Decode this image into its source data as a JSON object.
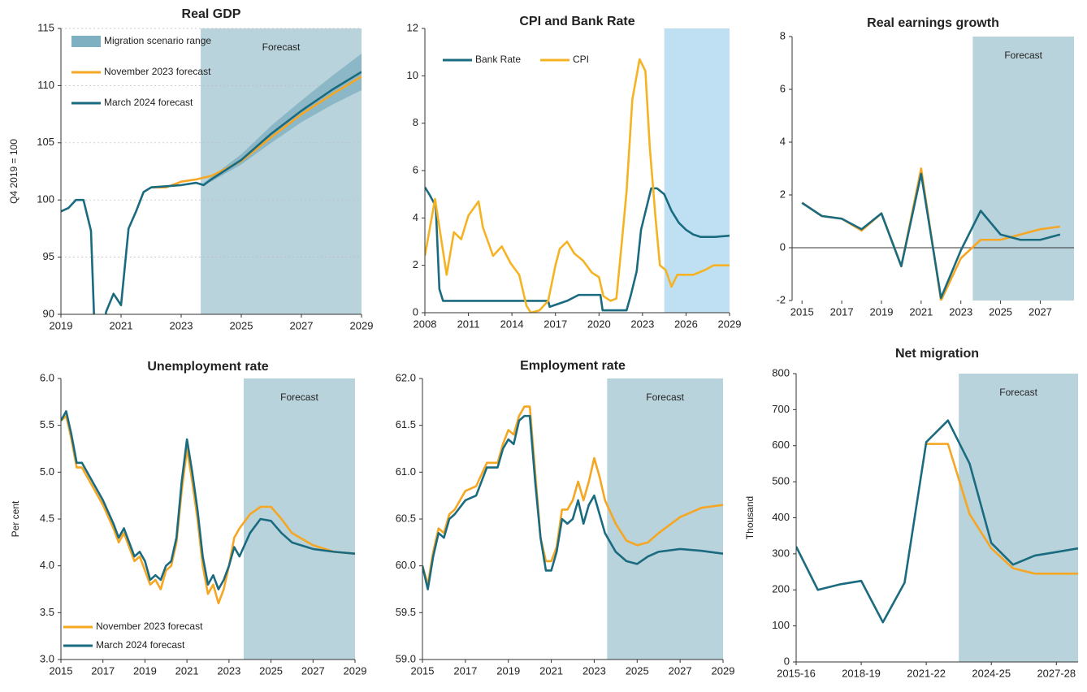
{
  "chart_data": [
    {
      "type": "line",
      "title": "Real GDP",
      "ylabel": "Q4 2019 = 100",
      "grid": true,
      "legend": "upper left",
      "forecast": {
        "label": "Forecast",
        "start": 2023.65,
        "color": "#b9d3dc"
      },
      "xlim": [
        2019,
        2029
      ],
      "xticks": [
        2019,
        2021,
        2023,
        2025,
        2027,
        2029
      ],
      "ylim": [
        90,
        115
      ],
      "yticks": [
        90,
        95,
        100,
        105,
        110,
        115
      ],
      "band": {
        "name": "Migration scenario range",
        "color": "#7fb0c2",
        "x": [
          2023.65,
          2024,
          2025,
          2026,
          2027,
          2028,
          2029
        ],
        "lower": [
          101.3,
          101.6,
          103.1,
          105.0,
          106.8,
          108.3,
          109.6
        ],
        "upper": [
          101.3,
          102.0,
          104.0,
          106.5,
          108.7,
          110.8,
          112.8
        ]
      },
      "series": [
        {
          "name": "November 2023 forecast",
          "color": "#f5a623",
          "x": [
            2022,
            2022.5,
            2023,
            2023.5,
            2024,
            2025,
            2026,
            2027,
            2028,
            2029
          ],
          "values": [
            101.1,
            101.1,
            101.6,
            101.8,
            102.1,
            103.4,
            105.5,
            107.5,
            109.2,
            110.8
          ]
        },
        {
          "name": "March 2024 forecast",
          "color": "#1b6b80",
          "x": [
            2019,
            2019.25,
            2019.5,
            2019.75,
            2020,
            2020.25,
            2020.5,
            2020.75,
            2021,
            2021.25,
            2021.5,
            2021.75,
            2022,
            2022.5,
            2023,
            2023.5,
            2023.75,
            2024,
            2025,
            2026,
            2027,
            2028,
            2029
          ],
          "values": [
            99,
            99.3,
            100,
            100,
            97.3,
            79,
            90.2,
            91.8,
            90.8,
            97.5,
            99,
            100.7,
            101.1,
            101.2,
            101.3,
            101.5,
            101.3,
            101.8,
            103.5,
            105.8,
            107.8,
            109.6,
            111.2
          ]
        }
      ]
    },
    {
      "type": "line",
      "title": "CPI and Bank Rate",
      "grid": false,
      "legend": "upper left",
      "forecast": {
        "start": 2024.5,
        "color": "#bfe0f2"
      },
      "xlim": [
        2008,
        2029
      ],
      "xticks": [
        2008,
        2011,
        2014,
        2017,
        2020,
        2023,
        2026,
        2029
      ],
      "ylim": [
        0,
        12
      ],
      "yticks": [
        0,
        2,
        4,
        6,
        8,
        10,
        12
      ],
      "series": [
        {
          "name": "Bank Rate",
          "color": "#1b6b80",
          "x": [
            2008,
            2008.3,
            2008.75,
            2009,
            2009.25,
            2016.5,
            2016.6,
            2017.8,
            2018.6,
            2020.1,
            2020.25,
            2021.9,
            2022.2,
            2022.6,
            2022.9,
            2023.3,
            2023.6,
            2024,
            2024.5,
            2025,
            2025.5,
            2026,
            2026.5,
            2027,
            2028,
            2029
          ],
          "values": [
            5.3,
            5.0,
            4.5,
            1.0,
            0.5,
            0.5,
            0.25,
            0.5,
            0.75,
            0.75,
            0.1,
            0.1,
            0.75,
            1.75,
            3.5,
            4.5,
            5.25,
            5.25,
            5.0,
            4.3,
            3.8,
            3.5,
            3.3,
            3.2,
            3.2,
            3.25
          ]
        },
        {
          "name": "CPI",
          "color": "#f5b324",
          "x": [
            2008,
            2008.7,
            2009.5,
            2010,
            2010.5,
            2011,
            2011.7,
            2012,
            2012.7,
            2013.3,
            2013.9,
            2014.5,
            2015,
            2015.3,
            2015.9,
            2016.5,
            2017,
            2017.3,
            2017.8,
            2018.3,
            2018.9,
            2019.5,
            2020,
            2020.3,
            2020.8,
            2021.2,
            2021.5,
            2021.9,
            2022.3,
            2022.8,
            2023.2,
            2023.5,
            2023.9,
            2024.2,
            2024.6,
            2025,
            2025.4,
            2026,
            2026.5,
            2027.3,
            2027.9,
            2029
          ],
          "values": [
            2.4,
            4.8,
            1.6,
            3.4,
            3.1,
            4.1,
            4.7,
            3.6,
            2.4,
            2.8,
            2.1,
            1.6,
            0.3,
            0.0,
            0.1,
            0.5,
            2.0,
            2.7,
            3.0,
            2.5,
            2.2,
            1.7,
            1.5,
            0.7,
            0.5,
            0.6,
            2.5,
            5.1,
            9.0,
            10.7,
            10.2,
            7.0,
            4.0,
            2.0,
            1.8,
            1.1,
            1.6,
            1.6,
            1.6,
            1.8,
            2.0,
            2.0
          ]
        }
      ]
    },
    {
      "type": "line",
      "title": "Real earnings growth",
      "grid": false,
      "zero_line": true,
      "forecast": {
        "label": "Forecast",
        "start": 2023.6,
        "color": "#b9d3dc"
      },
      "xlim": [
        2014.5,
        2028.7
      ],
      "xticks": [
        2015,
        2017,
        2019,
        2021,
        2023,
        2025,
        2027
      ],
      "ylim": [
        -2,
        8
      ],
      "yticks": [
        -2,
        0,
        2,
        4,
        6,
        8
      ],
      "series": [
        {
          "color": "#f5a623",
          "x": [
            2015,
            2016,
            2017,
            2018,
            2019,
            2020,
            2021,
            2022,
            2023,
            2024,
            2025,
            2026,
            2027,
            2028
          ],
          "values": [
            1.7,
            1.2,
            1.1,
            0.65,
            1.3,
            -0.7,
            3.0,
            -2.0,
            -0.4,
            0.3,
            0.3,
            0.5,
            0.7,
            0.8
          ]
        },
        {
          "color": "#1b6b80",
          "x": [
            2015,
            2016,
            2017,
            2018,
            2019,
            2020,
            2021,
            2022,
            2023,
            2024,
            2025,
            2026,
            2027,
            2028
          ],
          "values": [
            1.7,
            1.2,
            1.1,
            0.7,
            1.3,
            -0.7,
            2.8,
            -1.9,
            -0.1,
            1.4,
            0.5,
            0.3,
            0.3,
            0.5
          ]
        }
      ]
    },
    {
      "type": "line",
      "title": "Unemployment rate",
      "ylabel": "Per cent",
      "grid": false,
      "legend": "lower left",
      "forecast": {
        "label": "Forecast",
        "start": 2023.7,
        "color": "#b9d3dc"
      },
      "xlim": [
        2015,
        2029
      ],
      "xticks": [
        2015,
        2017,
        2019,
        2021,
        2023,
        2025,
        2027,
        2029
      ],
      "ylim": [
        3,
        6
      ],
      "yticks": [
        {
          "value": 3,
          "label": "3.0"
        },
        3.5,
        {
          "value": 4,
          "label": "4.0"
        },
        4.5,
        {
          "value": 5,
          "label": "5.0"
        },
        5.5,
        {
          "value": 6,
          "label": "6.0"
        }
      ],
      "series": [
        {
          "name": "November 2023 forecast",
          "color": "#f5a623",
          "x": [
            2015,
            2015.25,
            2015.5,
            2015.75,
            2016,
            2016.5,
            2017,
            2017.5,
            2017.75,
            2018,
            2018.5,
            2018.75,
            2019,
            2019.25,
            2019.5,
            2019.75,
            2020,
            2020.25,
            2020.5,
            2020.75,
            2021,
            2021.25,
            2021.5,
            2021.75,
            2022,
            2022.25,
            2022.5,
            2022.75,
            2023,
            2023.25,
            2023.5,
            2024,
            2024.5,
            2025,
            2025.5,
            2026,
            2027,
            2028,
            2029
          ],
          "values": [
            5.55,
            5.6,
            5.35,
            5.05,
            5.05,
            4.85,
            4.65,
            4.4,
            4.25,
            4.35,
            4.05,
            4.1,
            3.95,
            3.8,
            3.85,
            3.75,
            3.95,
            4.0,
            4.25,
            4.8,
            5.25,
            4.9,
            4.5,
            4.0,
            3.7,
            3.8,
            3.6,
            3.75,
            4.0,
            4.3,
            4.4,
            4.55,
            4.63,
            4.63,
            4.5,
            4.35,
            4.22,
            4.15,
            4.13
          ]
        },
        {
          "name": "March 2024 forecast",
          "color": "#1b6b80",
          "x": [
            2015,
            2015.25,
            2015.5,
            2015.75,
            2016,
            2016.5,
            2017,
            2017.5,
            2017.75,
            2018,
            2018.5,
            2018.75,
            2019,
            2019.25,
            2019.5,
            2019.75,
            2020,
            2020.25,
            2020.5,
            2020.75,
            2021,
            2021.25,
            2021.5,
            2021.75,
            2022,
            2022.25,
            2022.5,
            2022.75,
            2023,
            2023.25,
            2023.5,
            2024,
            2024.5,
            2025,
            2025.5,
            2026,
            2027,
            2028,
            2029
          ],
          "values": [
            5.55,
            5.65,
            5.4,
            5.1,
            5.1,
            4.9,
            4.7,
            4.45,
            4.3,
            4.4,
            4.1,
            4.15,
            4.05,
            3.85,
            3.9,
            3.85,
            4.0,
            4.05,
            4.3,
            4.9,
            5.35,
            5.0,
            4.6,
            4.1,
            3.8,
            3.9,
            3.75,
            3.85,
            4.0,
            4.2,
            4.1,
            4.35,
            4.5,
            4.48,
            4.35,
            4.25,
            4.18,
            4.15,
            4.13
          ]
        }
      ]
    },
    {
      "type": "line",
      "title": "Employment rate",
      "grid": false,
      "forecast": {
        "label": "Forecast",
        "start": 2023.6,
        "color": "#b9d3dc"
      },
      "xlim": [
        2015,
        2029
      ],
      "xticks": [
        2015,
        2017,
        2019,
        2021,
        2023,
        2025,
        2027,
        2029
      ],
      "ylim": [
        59,
        62
      ],
      "yticks": [
        {
          "value": 59,
          "label": "59.0"
        },
        59.5,
        {
          "value": 60,
          "label": "60.0"
        },
        60.5,
        {
          "value": 61,
          "label": "61.0"
        },
        61.5,
        {
          "value": 62,
          "label": "62.0"
        }
      ],
      "series": [
        {
          "color": "#f5a623",
          "x": [
            2015,
            2015.25,
            2015.5,
            2015.75,
            2016,
            2016.25,
            2016.5,
            2017,
            2017.5,
            2018,
            2018.5,
            2018.75,
            2019,
            2019.25,
            2019.5,
            2019.75,
            2020,
            2020.25,
            2020.5,
            2020.75,
            2021,
            2021.25,
            2021.5,
            2021.75,
            2022,
            2022.25,
            2022.5,
            2022.75,
            2023,
            2023.25,
            2023.5,
            2024,
            2024.5,
            2025,
            2025.5,
            2026,
            2027,
            2028,
            2029
          ],
          "values": [
            60.0,
            59.8,
            60.15,
            60.4,
            60.35,
            60.55,
            60.6,
            60.8,
            60.85,
            61.1,
            61.1,
            61.3,
            61.45,
            61.4,
            61.6,
            61.7,
            61.7,
            61.0,
            60.3,
            60.05,
            60.05,
            60.2,
            60.6,
            60.6,
            60.7,
            60.9,
            60.7,
            60.9,
            61.15,
            60.95,
            60.7,
            60.45,
            60.27,
            60.22,
            60.25,
            60.35,
            60.52,
            60.62,
            60.65
          ]
        },
        {
          "color": "#1b6b80",
          "x": [
            2015,
            2015.25,
            2015.5,
            2015.75,
            2016,
            2016.25,
            2016.5,
            2017,
            2017.5,
            2018,
            2018.5,
            2018.75,
            2019,
            2019.25,
            2019.5,
            2019.75,
            2020,
            2020.25,
            2020.5,
            2020.75,
            2021,
            2021.25,
            2021.5,
            2021.75,
            2022,
            2022.25,
            2022.5,
            2022.75,
            2023,
            2023.25,
            2023.5,
            2024,
            2024.5,
            2025,
            2025.5,
            2026,
            2027,
            2028,
            2029
          ],
          "values": [
            60.0,
            59.75,
            60.1,
            60.35,
            60.3,
            60.5,
            60.55,
            60.7,
            60.75,
            61.05,
            61.05,
            61.25,
            61.35,
            61.3,
            61.55,
            61.6,
            61.6,
            60.9,
            60.3,
            59.95,
            59.95,
            60.15,
            60.5,
            60.45,
            60.5,
            60.7,
            60.45,
            60.65,
            60.75,
            60.55,
            60.35,
            60.15,
            60.05,
            60.02,
            60.1,
            60.15,
            60.18,
            60.16,
            60.13
          ]
        }
      ]
    },
    {
      "type": "line",
      "title": "Net migration",
      "ylabel": "Thousand",
      "grid": false,
      "forecast": {
        "label": "Forecast",
        "start": 2022.5,
        "color": "#b9d3dc"
      },
      "xlim": [
        2015,
        2028
      ],
      "xticks": [
        {
          "value": 2015,
          "label": "2015-16"
        },
        {
          "value": 2018,
          "label": "2018-19"
        },
        {
          "value": 2021,
          "label": "2021-22"
        },
        {
          "value": 2024,
          "label": "2024-25"
        },
        {
          "value": 2027,
          "label": "2027-28"
        }
      ],
      "ylim": [
        0,
        800
      ],
      "yticks": [
        0,
        100,
        200,
        300,
        400,
        500,
        600,
        700,
        800
      ],
      "series": [
        {
          "color": "#f5a623",
          "x": [
            2021,
            2022,
            2023,
            2024,
            2025,
            2026,
            2027,
            2028
          ],
          "values": [
            605,
            605,
            410,
            315,
            260,
            245,
            245,
            245
          ]
        },
        {
          "color": "#1b6b80",
          "x": [
            2015,
            2016,
            2017,
            2018,
            2019,
            2020,
            2021,
            2022,
            2023,
            2024,
            2025,
            2026,
            2027,
            2028
          ],
          "values": [
            320,
            200,
            215,
            225,
            110,
            220,
            610,
            670,
            550,
            330,
            270,
            295,
            305,
            315
          ]
        }
      ]
    }
  ]
}
